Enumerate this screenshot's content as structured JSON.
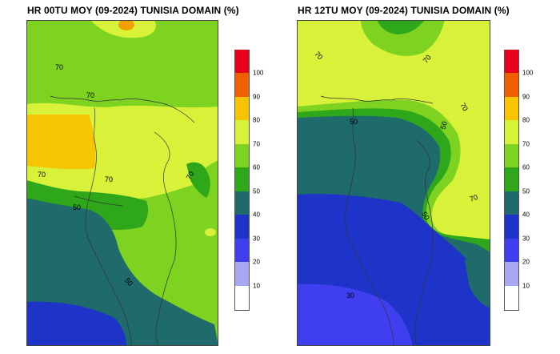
{
  "panels": [
    {
      "title": "HR 00TU MOY (09-2024) TUNISIA DOMAIN (%)",
      "contour_labels": [
        "70",
        "70",
        "70",
        "70",
        "70",
        "50",
        "50"
      ]
    },
    {
      "title": "HR 12TU MOY (09-2024) TUNISIA DOMAIN (%)",
      "contour_labels": [
        "70",
        "70",
        "70",
        "50",
        "50",
        "70",
        "50",
        "30"
      ]
    }
  ],
  "colorbar": {
    "labels": [
      "100",
      "90",
      "80",
      "70",
      "60",
      "50",
      "40",
      "30",
      "20",
      "10"
    ],
    "colors": [
      "#e8001c",
      "#f06000",
      "#f6c400",
      "#d8f23a",
      "#7ed321",
      "#2ea81a",
      "#1f6b6b",
      "#1e33c8",
      "#3f3ff0",
      "#a8a8f2",
      "#ffffff"
    ]
  },
  "palette": {
    "red": "#e8001c",
    "orange": "#f06000",
    "gold": "#f6c400",
    "yellowgreen": "#d8f23a",
    "green": "#7ed321",
    "darkgreen": "#2ea81a",
    "teal": "#1f6b6b",
    "blue": "#1e33c8",
    "lightblue": "#3f3ff0",
    "lavender": "#a8a8f2"
  }
}
